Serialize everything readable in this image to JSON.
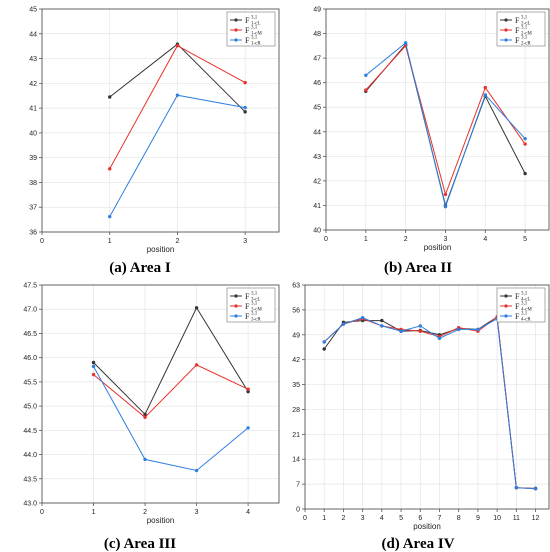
{
  "chart_data": [
    {
      "type": "line",
      "caption": "(a) Area I",
      "xlabel": "position",
      "xlim": [
        0,
        3.5
      ],
      "ylim": [
        36,
        45
      ],
      "xticks": [
        0,
        1,
        2,
        3
      ],
      "yticks": [
        36,
        37,
        38,
        39,
        40,
        41,
        42,
        43,
        44,
        45
      ],
      "grid": true,
      "legend_position": "top-right",
      "x": [
        1,
        2,
        3
      ],
      "series": [
        {
          "name": "F1-cL",
          "base": "F",
          "sub": "1-cL",
          "sup": "3,1",
          "color": "#333333",
          "values": [
            41.45,
            43.58,
            40.85
          ]
        },
        {
          "name": "F1-cM",
          "base": "F",
          "sub": "1-cM",
          "sup": "3,1",
          "color": "#e8322c",
          "values": [
            38.55,
            43.52,
            42.03
          ]
        },
        {
          "name": "F1-cR",
          "base": "F",
          "sub": "1-cR",
          "sup": "3,1",
          "color": "#2f7fe0",
          "values": [
            36.62,
            41.52,
            41.02
          ]
        }
      ]
    },
    {
      "type": "line",
      "caption": "(b) Area II",
      "xlabel": "position",
      "xlim": [
        0,
        5.6
      ],
      "ylim": [
        40,
        49
      ],
      "xticks": [
        0,
        1,
        2,
        3,
        4,
        5
      ],
      "yticks": [
        40,
        41,
        42,
        43,
        44,
        45,
        46,
        47,
        48,
        49
      ],
      "grid": true,
      "legend_position": "top-right",
      "x": [
        1,
        2,
        3,
        4,
        5
      ],
      "series": [
        {
          "name": "F2-cL",
          "base": "F",
          "sub": "2-cL",
          "sup": "3,1",
          "color": "#333333",
          "values": [
            45.65,
            47.55,
            41.0,
            45.45,
            42.3
          ]
        },
        {
          "name": "F2-cM",
          "base": "F",
          "sub": "2-cM",
          "sup": "3,1",
          "color": "#e8322c",
          "values": [
            45.7,
            47.5,
            41.45,
            45.8,
            43.5
          ]
        },
        {
          "name": "F2-cR",
          "base": "F",
          "sub": "2-cR",
          "sup": "3,1",
          "color": "#2f7fe0",
          "values": [
            46.3,
            47.62,
            40.95,
            45.5,
            43.72
          ]
        }
      ]
    },
    {
      "type": "line",
      "caption": "(c) Area III",
      "xlabel": "position",
      "xlim": [
        0,
        4.6
      ],
      "ylim": [
        43.0,
        47.5
      ],
      "xticks": [
        0,
        1,
        2,
        3,
        4
      ],
      "yticks": [
        43.0,
        43.5,
        44.0,
        44.5,
        45.0,
        45.5,
        46.0,
        46.5,
        47.0,
        47.5
      ],
      "ytick_labels": [
        "43.0",
        "43.5",
        "44.0",
        "44.5",
        "45.0",
        "45.5",
        "46.0",
        "46.5",
        "47.0",
        "47.5"
      ],
      "grid": true,
      "legend_position": "top-right",
      "x": [
        1,
        2,
        3,
        4
      ],
      "series": [
        {
          "name": "F3-cL",
          "base": "F",
          "sub": "3-cL",
          "sup": "3,1",
          "color": "#333333",
          "values": [
            45.9,
            44.83,
            47.03,
            45.3
          ]
        },
        {
          "name": "F3-cM",
          "base": "F",
          "sub": "3-cM",
          "sup": "3,1",
          "color": "#e8322c",
          "values": [
            45.65,
            44.77,
            45.85,
            45.35
          ]
        },
        {
          "name": "F3-cR",
          "base": "F",
          "sub": "3-cR",
          "sup": "3,1",
          "color": "#2f7fe0",
          "values": [
            45.82,
            43.9,
            43.67,
            44.55
          ]
        }
      ]
    },
    {
      "type": "line",
      "caption": "(d) Area IV",
      "xlabel": "position",
      "xlim": [
        0,
        12.7
      ],
      "ylim": [
        0,
        63
      ],
      "xticks": [
        0,
        1,
        2,
        3,
        4,
        5,
        6,
        7,
        8,
        9,
        10,
        11,
        12
      ],
      "yticks": [
        0,
        7,
        14,
        21,
        28,
        35,
        42,
        49,
        56,
        63
      ],
      "grid": true,
      "legend_position": "top-right",
      "x": [
        1,
        2,
        3,
        4,
        5,
        6,
        7,
        8,
        9,
        10,
        11,
        12
      ],
      "series": [
        {
          "name": "F4-cL",
          "base": "F",
          "sub": "4-cL",
          "sup": "3,1",
          "color": "#333333",
          "values": [
            45.0,
            52.5,
            53.0,
            53.0,
            50.0,
            50.2,
            49.0,
            50.8,
            50.5,
            54.0,
            6.0,
            5.8
          ]
        },
        {
          "name": "F4-cM",
          "base": "F",
          "sub": "4-cM",
          "sup": "3,1",
          "color": "#e8322c",
          "values": [
            47.0,
            52.0,
            53.5,
            51.5,
            50.5,
            50.0,
            48.5,
            51.0,
            50.0,
            54.0,
            6.0,
            5.7
          ]
        },
        {
          "name": "F4-cR",
          "base": "F",
          "sub": "4-cR",
          "sup": "3,1",
          "color": "#2f7fe0",
          "values": [
            47.0,
            52.0,
            53.8,
            51.5,
            50.0,
            51.5,
            48.0,
            50.5,
            50.5,
            53.5,
            6.0,
            5.7
          ]
        }
      ]
    }
  ]
}
